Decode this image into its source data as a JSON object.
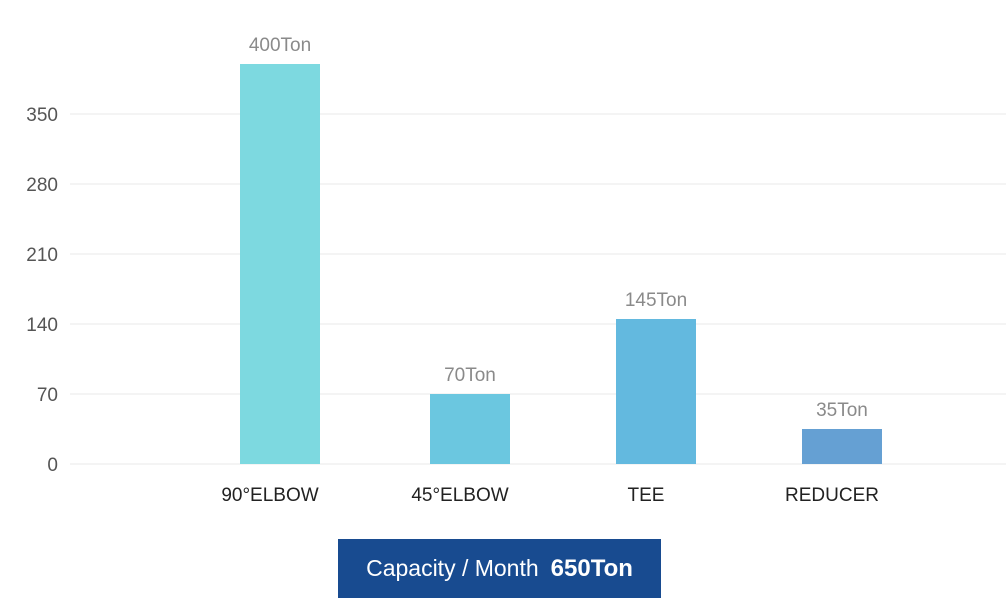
{
  "chart_data": {
    "type": "bar",
    "title": "",
    "xlabel": "",
    "ylabel": "",
    "categories": [
      "90°ELBOW",
      "45°ELBOW",
      "TEE",
      "REDUCER"
    ],
    "values": [
      400,
      70,
      145,
      35
    ],
    "data_labels": [
      "400Ton",
      "70Ton",
      "145Ton",
      "35Ton"
    ],
    "bar_colors": [
      "#7dd9e0",
      "#6bc7e0",
      "#63b9df",
      "#65a0d3"
    ],
    "yticks": [
      0,
      70,
      140,
      210,
      280,
      350
    ],
    "ylim": [
      0,
      420
    ],
    "grid": true,
    "legend": "none"
  },
  "summary": {
    "label": "Capacity / Month",
    "value": "650Ton",
    "background_color": "#184b90"
  },
  "colors": {
    "grid": "#e8e8e8",
    "tick_label": "#555555",
    "category_label": "#222222",
    "data_label": "#8a8a8a"
  }
}
